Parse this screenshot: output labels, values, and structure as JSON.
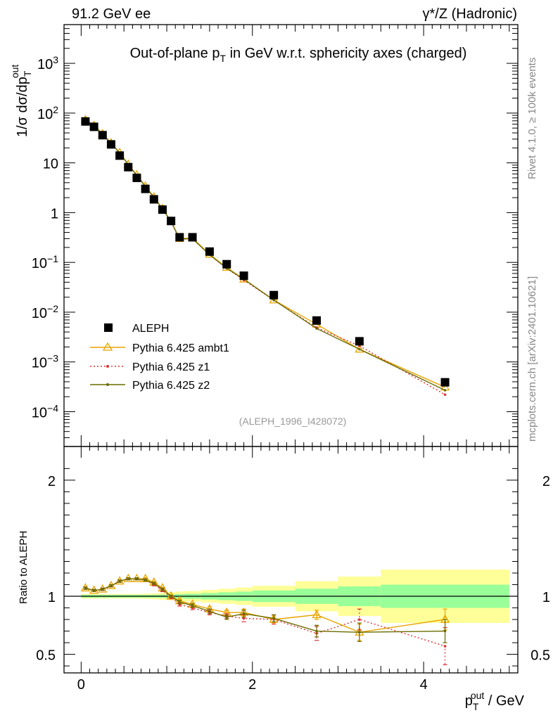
{
  "header": {
    "left": "91.2 GeV ee",
    "right": "γ*/Z (Hadronic)"
  },
  "side_text": {
    "rivet": "Rivet 4.1.0, ≥ 100k events",
    "mcplots": "mcplots.cern.ch [arXiv:2401.10621]"
  },
  "chart_data": [
    {
      "id": "main",
      "type": "scatter",
      "title": "Out-of-plane p_T in GeV w.r.t. sphericity axes (charged)",
      "ylabel": "1/σ dσ/dp_T^out",
      "yscale": "log",
      "ylim": [
        2e-05,
        6000
      ],
      "xlim": [
        -0.2,
        5.1
      ],
      "yticks": [
        {
          "v": 0.0001,
          "label": "10^-4"
        },
        {
          "v": 0.001,
          "label": "10^-3"
        },
        {
          "v": 0.01,
          "label": "10^-2"
        },
        {
          "v": 0.1,
          "label": "10^-1"
        },
        {
          "v": 1,
          "label": "1"
        },
        {
          "v": 10,
          "label": "10"
        },
        {
          "v": 100,
          "label": "10^2"
        },
        {
          "v": 1000,
          "label": "10^3"
        }
      ],
      "analysis_label": "(ALEPH_1996_I428072)",
      "x": [
        0.05,
        0.15,
        0.25,
        0.35,
        0.45,
        0.55,
        0.65,
        0.75,
        0.85,
        0.95,
        1.05,
        1.15,
        1.3,
        1.5,
        1.7,
        1.9,
        2.25,
        2.75,
        3.25,
        4.25
      ],
      "series": [
        {
          "name": "ALEPH",
          "kind": "data",
          "color": "#000000",
          "values": [
            68,
            53,
            36,
            23.5,
            14,
            8.2,
            5.0,
            3.0,
            1.85,
            1.15,
            0.68,
            0.32,
            0.32,
            0.165,
            0.092,
            0.054,
            0.022,
            0.0068,
            0.0026,
            0.00039
          ]
        },
        {
          "name": "Pythia 6.425 ambt1",
          "kind": "line",
          "color": "#e8a400",
          "marker": "triangle",
          "values": [
            73,
            56,
            38,
            25,
            16,
            9.3,
            5.7,
            3.4,
            2.05,
            1.2,
            0.67,
            0.3,
            0.31,
            0.145,
            0.079,
            0.046,
            0.0175,
            0.0057,
            0.0018,
            0.00031
          ]
        },
        {
          "name": "Pythia 6.425 z1",
          "kind": "line",
          "color": "#e03030",
          "marker": "dot",
          "dash": "2,3",
          "values": [
            72,
            55.5,
            37.5,
            24.8,
            15.8,
            9.2,
            5.6,
            3.35,
            2.0,
            1.18,
            0.66,
            0.29,
            0.3,
            0.142,
            0.076,
            0.044,
            0.0175,
            0.0049,
            0.0021,
            0.00022
          ]
        },
        {
          "name": "Pythia 6.425 z2",
          "kind": "line",
          "color": "#6b6b00",
          "marker": "dot",
          "values": [
            72.5,
            55.8,
            37.8,
            24.9,
            15.9,
            9.25,
            5.65,
            3.38,
            2.02,
            1.19,
            0.665,
            0.295,
            0.3,
            0.142,
            0.076,
            0.046,
            0.0175,
            0.0047,
            0.0018,
            0.00027
          ]
        }
      ]
    },
    {
      "id": "ratio",
      "type": "line",
      "ylabel": "Ratio to ALEPH",
      "ylim": [
        0.34,
        2.29
      ],
      "yticks": [
        {
          "v": 0.5,
          "label": "0.5"
        },
        {
          "v": 1,
          "label": "1"
        },
        {
          "v": 2,
          "label": "2"
        }
      ],
      "xlabel": "p_T^out / GeV",
      "xticks": [
        {
          "v": 0,
          "label": "0"
        },
        {
          "v": 2,
          "label": "2"
        },
        {
          "v": 4,
          "label": "4"
        }
      ],
      "bands": {
        "edges": [
          0,
          0.1,
          0.2,
          0.3,
          0.4,
          0.5,
          0.6,
          0.7,
          0.8,
          0.9,
          1.0,
          1.1,
          1.2,
          1.4,
          1.6,
          1.8,
          2.0,
          2.5,
          3.0,
          3.5,
          5.0
        ],
        "inner_half": [
          0.012,
          0.012,
          0.012,
          0.012,
          0.012,
          0.012,
          0.012,
          0.012,
          0.012,
          0.014,
          0.016,
          0.018,
          0.022,
          0.028,
          0.034,
          0.04,
          0.05,
          0.065,
          0.085,
          0.1
        ],
        "outer_half": [
          0.02,
          0.02,
          0.02,
          0.02,
          0.02,
          0.02,
          0.02,
          0.022,
          0.025,
          0.03,
          0.035,
          0.04,
          0.045,
          0.055,
          0.065,
          0.075,
          0.09,
          0.13,
          0.17,
          0.23
        ],
        "inner_color": "#99ff99",
        "outer_color": "#ffff99"
      },
      "series": [
        {
          "name": "Pythia 6.425 ambt1",
          "color": "#e8a400",
          "marker": "triangle",
          "values": [
            1.07,
            1.05,
            1.06,
            1.09,
            1.13,
            1.15,
            1.15,
            1.15,
            1.12,
            1.07,
            1.0,
            0.96,
            0.93,
            0.89,
            0.86,
            0.86,
            0.8,
            0.84,
            0.69,
            0.8
          ],
          "err": [
            0.01,
            0.01,
            0.01,
            0.01,
            0.01,
            0.01,
            0.01,
            0.01,
            0.01,
            0.01,
            0.01,
            0.015,
            0.015,
            0.02,
            0.02,
            0.03,
            0.03,
            0.04,
            0.07,
            0.09
          ]
        },
        {
          "name": "Pythia 6.425 z1",
          "color": "#e03030",
          "marker": "dot",
          "dash": "2,3",
          "values": [
            1.07,
            1.05,
            1.06,
            1.09,
            1.13,
            1.15,
            1.15,
            1.14,
            1.1,
            1.05,
            0.99,
            0.93,
            0.9,
            0.86,
            0.83,
            0.81,
            0.8,
            0.68,
            0.8,
            0.57
          ],
          "err": [
            0.01,
            0.01,
            0.01,
            0.01,
            0.01,
            0.01,
            0.01,
            0.01,
            0.01,
            0.01,
            0.01,
            0.015,
            0.015,
            0.02,
            0.02,
            0.03,
            0.04,
            0.06,
            0.09,
            0.16
          ]
        },
        {
          "name": "Pythia 6.425 z2",
          "color": "#6b6b00",
          "marker": "dot",
          "values": [
            1.07,
            1.05,
            1.06,
            1.09,
            1.13,
            1.15,
            1.15,
            1.14,
            1.11,
            1.06,
            1.0,
            0.95,
            0.92,
            0.87,
            0.82,
            0.85,
            0.81,
            0.7,
            0.69,
            0.7
          ],
          "err": [
            0.01,
            0.01,
            0.01,
            0.01,
            0.01,
            0.01,
            0.01,
            0.01,
            0.01,
            0.01,
            0.01,
            0.015,
            0.015,
            0.02,
            0.02,
            0.03,
            0.03,
            0.05,
            0.08,
            0.1
          ]
        }
      ]
    }
  ]
}
